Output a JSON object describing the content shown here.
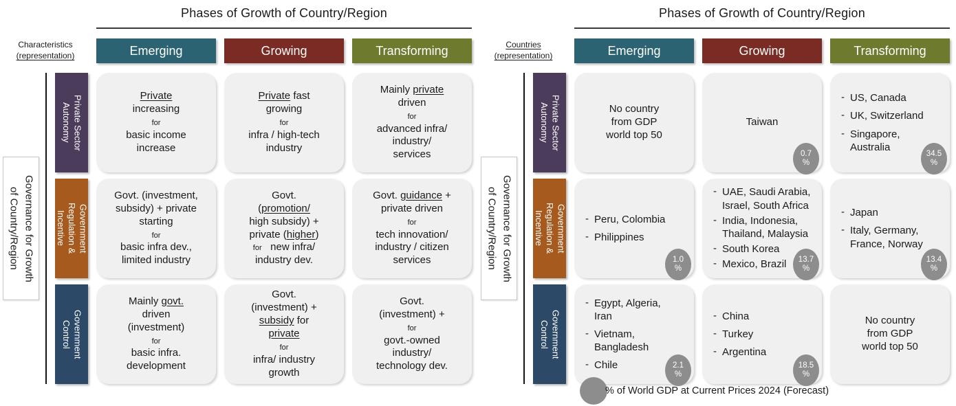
{
  "colors": {
    "phase_emerging": "#2B6372",
    "phase_growing": "#7A2B23",
    "phase_transforming": "#6E7B2F",
    "row_private_sector": "#4B3C5C",
    "row_govt_regulation": "#A65A1D",
    "row_govt_control": "#2C4A68",
    "cell_bg": "#F0F0F0",
    "badge_gray": "#8D8D8D"
  },
  "legend": {
    "label": "% of World GDP at Current Prices 2024 (Forecast)"
  },
  "panels": [
    {
      "key": "characteristics",
      "title": "Phases of Growth of Country/Region",
      "corner_lines": [
        {
          "text": "Characteristics",
          "underline": false
        },
        {
          "text": "(representation)",
          "underline": true
        }
      ],
      "axis_label": "Governance for Growth\nof Country/Region",
      "columns": [
        {
          "label": "Emerging",
          "color": "#2B6372"
        },
        {
          "label": "Growing",
          "color": "#7A2B23"
        },
        {
          "label": "Transforming",
          "color": "#6E7B2F"
        }
      ],
      "rows": [
        {
          "label": "Private Sector\nAutonomy",
          "color": "#4B3C5C",
          "cells": [
            {
              "segments": [
                {
                  "t": "Private",
                  "u": true
                },
                {
                  "br": true
                },
                {
                  "t": "increasing"
                },
                {
                  "br": true
                },
                {
                  "t": "for",
                  "s": true
                },
                {
                  "br": true
                },
                {
                  "t": "basic income"
                },
                {
                  "br": true
                },
                {
                  "t": "increase"
                }
              ]
            },
            {
              "segments": [
                {
                  "t": "Private",
                  "u": true
                },
                {
                  "t": " fast"
                },
                {
                  "br": true
                },
                {
                  "t": "growing"
                },
                {
                  "br": true
                },
                {
                  "t": "for",
                  "s": true
                },
                {
                  "br": true
                },
                {
                  "t": "infra / high-tech"
                },
                {
                  "br": true
                },
                {
                  "t": "industry"
                }
              ]
            },
            {
              "segments": [
                {
                  "t": "Mainly "
                },
                {
                  "t": "private",
                  "u": true
                },
                {
                  "br": true
                },
                {
                  "t": "driven"
                },
                {
                  "br": true
                },
                {
                  "t": "for",
                  "s": true
                },
                {
                  "br": true
                },
                {
                  "t": "advanced infra/"
                },
                {
                  "br": true
                },
                {
                  "t": "industry/"
                },
                {
                  "br": true
                },
                {
                  "t": "services"
                }
              ]
            }
          ]
        },
        {
          "label": "Government\nRegulation &\nIncentive",
          "color": "#A65A1D",
          "cells": [
            {
              "segments": [
                {
                  "t": "Govt. (investment,"
                },
                {
                  "br": true
                },
                {
                  "t": "subsidy) + private"
                },
                {
                  "br": true
                },
                {
                  "t": "starting"
                },
                {
                  "br": true
                },
                {
                  "t": "for",
                  "s": true
                },
                {
                  "br": true
                },
                {
                  "t": "basic infra dev.,"
                },
                {
                  "br": true
                },
                {
                  "t": "limited industry"
                }
              ]
            },
            {
              "segments": [
                {
                  "t": "Govt."
                },
                {
                  "br": true
                },
                {
                  "t": "("
                },
                {
                  "t": "promotion/",
                  "u": true
                },
                {
                  "br": true
                },
                {
                  "t": "high subsidy)  +"
                },
                {
                  "br": true
                },
                {
                  "t": "private ("
                },
                {
                  "t": "higher",
                  "u": true
                },
                {
                  "t": ")"
                },
                {
                  "br": true
                },
                {
                  "t": "for",
                  "s": true
                },
                {
                  "t": "   new infra/"
                },
                {
                  "br": true
                },
                {
                  "t": "industry dev."
                }
              ]
            },
            {
              "segments": [
                {
                  "t": "Govt. "
                },
                {
                  "t": "guidance",
                  "u": true
                },
                {
                  "t": " +"
                },
                {
                  "br": true
                },
                {
                  "t": "private driven"
                },
                {
                  "br": true
                },
                {
                  "t": "for",
                  "s": true
                },
                {
                  "br": true
                },
                {
                  "t": "tech innovation/"
                },
                {
                  "br": true
                },
                {
                  "t": "industry / citizen"
                },
                {
                  "br": true
                },
                {
                  "t": "services"
                }
              ]
            }
          ]
        },
        {
          "label": "Government\nControl",
          "color": "#2C4A68",
          "cells": [
            {
              "segments": [
                {
                  "t": "Mainly "
                },
                {
                  "t": "govt.",
                  "u": true
                },
                {
                  "br": true
                },
                {
                  "t": "driven"
                },
                {
                  "br": true
                },
                {
                  "t": "(investment)"
                },
                {
                  "br": true
                },
                {
                  "t": "for",
                  "s": true
                },
                {
                  "br": true
                },
                {
                  "t": "basic infra."
                },
                {
                  "br": true
                },
                {
                  "t": "development"
                }
              ]
            },
            {
              "segments": [
                {
                  "t": "Govt."
                },
                {
                  "br": true
                },
                {
                  "t": "(investment) +"
                },
                {
                  "br": true
                },
                {
                  "t": "subsidy",
                  "u": true
                },
                {
                  "t": " for"
                },
                {
                  "br": true
                },
                {
                  "t": "private",
                  "u": true
                },
                {
                  "br": true
                },
                {
                  "t": "for",
                  "s": true
                },
                {
                  "br": true
                },
                {
                  "t": "infra/ industry"
                },
                {
                  "br": true
                },
                {
                  "t": "growth"
                }
              ]
            },
            {
              "segments": [
                {
                  "t": "Govt."
                },
                {
                  "br": true
                },
                {
                  "t": "(investment) +"
                },
                {
                  "br": true
                },
                {
                  "t": "for",
                  "s": true
                },
                {
                  "br": true
                },
                {
                  "t": "govt.-owned"
                },
                {
                  "br": true
                },
                {
                  "t": "industry/"
                },
                {
                  "br": true
                },
                {
                  "t": "technology dev."
                }
              ]
            }
          ]
        }
      ]
    },
    {
      "key": "countries",
      "title": "Phases of Growth of Country/Region",
      "corner_lines": [
        {
          "text": "Countries",
          "underline": true
        },
        {
          "text": "(representation)",
          "underline": true
        }
      ],
      "axis_label": "Governance for Growth\nof Country/Region",
      "columns": [
        {
          "label": "Emerging",
          "color": "#2B6372"
        },
        {
          "label": "Growing",
          "color": "#7A2B23"
        },
        {
          "label": "Transforming",
          "color": "#6E7B2F"
        }
      ],
      "rows": [
        {
          "label": "Private Sector\nAutonomy",
          "color": "#4B3C5C",
          "cells": [
            {
              "text": "No country\nfrom GDP\nworld top 50"
            },
            {
              "text": "Taiwan",
              "badge": {
                "value": "0.7",
                "unit": "%"
              }
            },
            {
              "bullets": [
                "US, Canada",
                "UK, Switzerland",
                "Singapore,\nAustralia"
              ],
              "badge": {
                "value": "34.5",
                "unit": "%"
              }
            }
          ]
        },
        {
          "label": "Government\nRegulation &\nIncentive",
          "color": "#A65A1D",
          "cells": [
            {
              "bullets": [
                "Peru, Colombia",
                "Philippines"
              ],
              "badge": {
                "value": "1.0",
                "unit": "%"
              }
            },
            {
              "bullets": [
                "UAE, Saudi Arabia,\nIsrael, South Africa",
                "India, Indonesia,\nThailand, Malaysia",
                "South Korea",
                "Mexico, Brazil"
              ],
              "dense": true,
              "badge": {
                "value": "13.7",
                "unit": "%"
              }
            },
            {
              "bullets": [
                "Japan",
                "Italy, Germany,\nFrance, Norway"
              ],
              "badge": {
                "value": "13.4",
                "unit": "%"
              }
            }
          ]
        },
        {
          "label": "Government\nControl",
          "color": "#2C4A68",
          "cells": [
            {
              "bullets": [
                "Egypt, Algeria,\nIran",
                "Vietnam,\nBangladesh",
                "Chile"
              ],
              "badge": {
                "value": "2.1",
                "unit": "%"
              }
            },
            {
              "bullets": [
                "China",
                "Turkey",
                "Argentina"
              ],
              "badge": {
                "value": "18.5",
                "unit": "%"
              }
            },
            {
              "text": "No country\nfrom GDP\nworld top 50"
            }
          ]
        }
      ]
    }
  ]
}
